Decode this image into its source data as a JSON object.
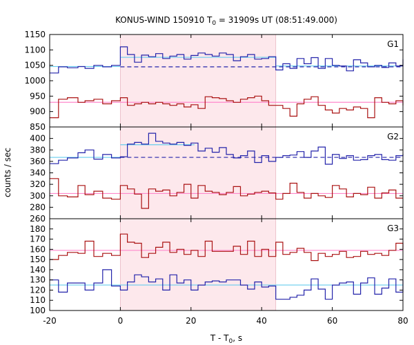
{
  "chart_data": {
    "type": "line",
    "title": "KONUS-WIND 150910 T",
    "title_sub": "0",
    "title_rest": " = 31909s UT (08:51:49.000)",
    "xlabel": "T - T",
    "xlabel_sub": "0",
    "xlabel_rest": ", s",
    "ylabel": "counts / sec",
    "xlim": [
      -20,
      80
    ],
    "xticks": [
      "-20",
      "0",
      "20",
      "40",
      "60",
      "80"
    ],
    "shaded_interval": [
      0,
      44
    ],
    "colors": {
      "blue_series": "#2222aa",
      "red_series": "#aa1111",
      "blue_background": "#66ccee",
      "red_background": "#ff88cc",
      "shade": "#fde8ec"
    },
    "panels": [
      {
        "label": "G1",
        "ylim": [
          850,
          1150
        ],
        "yticks": [
          "850",
          "900",
          "950",
          "1000",
          "1050",
          "1100",
          "1150"
        ],
        "series": [
          {
            "color": "blue",
            "x": [
              -20,
              -17.5,
              -15,
              -12,
              -10,
              -7.5,
              -5,
              -2.5,
              0,
              2,
              4,
              6,
              8,
              10,
              12,
              14,
              16,
              18,
              20,
              22,
              24,
              26,
              28,
              30,
              32,
              34,
              36,
              38,
              40,
              42,
              44,
              46,
              48,
              50,
              52,
              54,
              56,
              58,
              60,
              62,
              64,
              66,
              68,
              70,
              72,
              74,
              76,
              78,
              80
            ],
            "values": [
              1025,
              1045,
              1042,
              1046,
              1040,
              1050,
              1045,
              1050,
              1110,
              1085,
              1060,
              1083,
              1078,
              1088,
              1072,
              1080,
              1085,
              1070,
              1082,
              1090,
              1085,
              1080,
              1090,
              1085,
              1065,
              1078,
              1085,
              1070,
              1072,
              1078,
              1035,
              1055,
              1040,
              1072,
              1055,
              1075,
              1040,
              1072,
              1050,
              1048,
              1032,
              1068,
              1058,
              1045,
              1050,
              1043,
              1058,
              1048,
              1070
            ]
          },
          {
            "color": "red",
            "x": [
              -20,
              -17.5,
              -15,
              -12,
              -10,
              -7.5,
              -5,
              -2.5,
              0,
              2,
              4,
              6,
              8,
              10,
              12,
              14,
              16,
              18,
              20,
              22,
              24,
              26,
              28,
              30,
              32,
              34,
              36,
              38,
              40,
              42,
              44,
              46,
              48,
              50,
              52,
              54,
              56,
              58,
              60,
              62,
              64,
              66,
              68,
              70,
              72,
              74,
              76,
              78,
              80
            ],
            "values": [
              880,
              940,
              945,
              930,
              935,
              940,
              925,
              935,
              945,
              920,
              925,
              930,
              925,
              930,
              925,
              920,
              925,
              915,
              922,
              910,
              948,
              945,
              942,
              935,
              930,
              940,
              945,
              950,
              935,
              920,
              920,
              910,
              885,
              925,
              940,
              948,
              920,
              905,
              895,
              910,
              905,
              915,
              910,
              880,
              945,
              930,
              925,
              935,
              920
            ]
          }
        ],
        "backgrounds": [
          {
            "color": "blue",
            "x": [
              -20,
              0
            ],
            "value": 1046,
            "style": "solid"
          },
          {
            "color": "blue",
            "x": [
              0,
              44
            ],
            "value": 1076,
            "style": "solid"
          },
          {
            "color": "blue",
            "x": [
              44,
              80
            ],
            "value": 1048,
            "style": "solid"
          },
          {
            "color": "blue",
            "x": [
              0,
              80
            ],
            "value": 1045,
            "style": "dashed"
          },
          {
            "color": "red",
            "x": [
              -20,
              80
            ],
            "value": 930,
            "style": "solid"
          }
        ]
      },
      {
        "label": "G2",
        "ylim": [
          260,
          420
        ],
        "yticks": [
          "260",
          "280",
          "300",
          "320",
          "340",
          "360",
          "380",
          "400"
        ],
        "series": [
          {
            "color": "blue",
            "x": [
              -20,
              -17.5,
              -15,
              -12,
              -10,
              -7.5,
              -5,
              -2.5,
              0,
              2,
              4,
              6,
              8,
              10,
              12,
              14,
              16,
              18,
              20,
              22,
              24,
              26,
              28,
              30,
              32,
              34,
              36,
              38,
              40,
              42,
              44,
              46,
              48,
              50,
              52,
              54,
              56,
              58,
              60,
              62,
              64,
              66,
              68,
              70,
              72,
              74,
              76,
              78,
              80
            ],
            "values": [
              356,
              362,
              366,
              375,
              380,
              364,
              372,
              366,
              368,
              390,
              393,
              390,
              409,
              395,
              392,
              390,
              393,
              388,
              392,
              378,
              383,
              376,
              384,
              372,
              366,
              370,
              378,
              358,
              370,
              360,
              367,
              370,
              371,
              377,
              367,
              378,
              385,
              355,
              372,
              365,
              370,
              362,
              363,
              370,
              372,
              363,
              362,
              370,
              373
            ]
          },
          {
            "color": "red",
            "x": [
              -20,
              -17.5,
              -15,
              -12,
              -10,
              -7.5,
              -5,
              -2.5,
              0,
              2,
              4,
              6,
              8,
              10,
              12,
              14,
              16,
              18,
              20,
              22,
              24,
              26,
              28,
              30,
              32,
              34,
              36,
              38,
              40,
              42,
              44,
              46,
              48,
              50,
              52,
              54,
              56,
              58,
              60,
              62,
              64,
              66,
              68,
              70,
              72,
              74,
              76,
              78,
              80
            ],
            "values": [
              330,
              300,
              298,
              318,
              302,
              308,
              296,
              294,
              318,
              312,
              303,
              278,
              312,
              308,
              310,
              300,
              306,
              320,
              296,
              318,
              308,
              306,
              302,
              306,
              316,
              300,
              303,
              306,
              308,
              305,
              294,
              304,
              322,
              306,
              296,
              304,
              300,
              297,
              318,
              312,
              298,
              304,
              302,
              315,
              296,
              305,
              310,
              296,
              296
            ]
          }
        ],
        "backgrounds": [
          {
            "color": "blue",
            "x": [
              -20,
              0
            ],
            "value": 367,
            "style": "solid"
          },
          {
            "color": "blue",
            "x": [
              0,
              21
            ],
            "value": 389,
            "style": "solid"
          },
          {
            "color": "blue",
            "x": [
              0,
              80
            ],
            "value": 367,
            "style": "dashed"
          },
          {
            "color": "red",
            "x": [
              -20,
              80
            ],
            "value": 304,
            "style": "solid"
          }
        ]
      },
      {
        "label": "G3",
        "ylim": [
          100,
          190
        ],
        "yticks": [
          "100",
          "110",
          "120",
          "130",
          "140",
          "150",
          "160",
          "170",
          "180"
        ],
        "series": [
          {
            "color": "red",
            "x": [
              -20,
              -17.5,
              -15,
              -12,
              -10,
              -7.5,
              -5,
              -2.5,
              0,
              2,
              4,
              6,
              8,
              10,
              12,
              14,
              16,
              18,
              20,
              22,
              24,
              26,
              28,
              30,
              32,
              34,
              36,
              38,
              40,
              42,
              44,
              46,
              48,
              50,
              52,
              54,
              56,
              58,
              60,
              62,
              64,
              66,
              68,
              70,
              72,
              74,
              76,
              78,
              80
            ],
            "values": [
              150,
              154,
              157,
              156,
              168,
              153,
              156,
              154,
              175,
              167,
              166,
              152,
              156,
              162,
              167,
              157,
              160,
              155,
              159,
              153,
              168,
              158,
              158,
              158,
              163,
              155,
              168,
              153,
              160,
              153,
              167,
              155,
              157,
              161,
              157,
              149,
              156,
              153,
              155,
              158,
              152,
              153,
              158,
              155,
              156,
              154,
              159,
              166,
              160
            ]
          },
          {
            "color": "blue",
            "x": [
              -20,
              -17.5,
              -15,
              -12,
              -10,
              -7.5,
              -5,
              -2.5,
              0,
              2,
              4,
              6,
              8,
              10,
              12,
              14,
              16,
              18,
              20,
              22,
              24,
              26,
              28,
              30,
              32,
              34,
              36,
              38,
              40,
              42,
              44,
              46,
              48,
              50,
              52,
              54,
              56,
              58,
              60,
              62,
              64,
              66,
              68,
              70,
              72,
              74,
              76,
              78,
              80
            ],
            "values": [
              130,
              118,
              127,
              127,
              120,
              127,
              140,
              124,
              120,
              128,
              135,
              133,
              128,
              131,
              120,
              135,
              127,
              130,
              120,
              125,
              128,
              129,
              128,
              130,
              130,
              125,
              121,
              128,
              123,
              124,
              111,
              111,
              113,
              115,
              120,
              131,
              121,
              111,
              125,
              127,
              128,
              116,
              127,
              132,
              116,
              122,
              131,
              118,
              130
            ]
          }
        ],
        "backgrounds": [
          {
            "color": "red",
            "x": [
              -20,
              80
            ],
            "value": 159,
            "style": "solid"
          },
          {
            "color": "blue",
            "x": [
              -20,
              80
            ],
            "value": 125,
            "style": "solid"
          }
        ]
      }
    ]
  }
}
